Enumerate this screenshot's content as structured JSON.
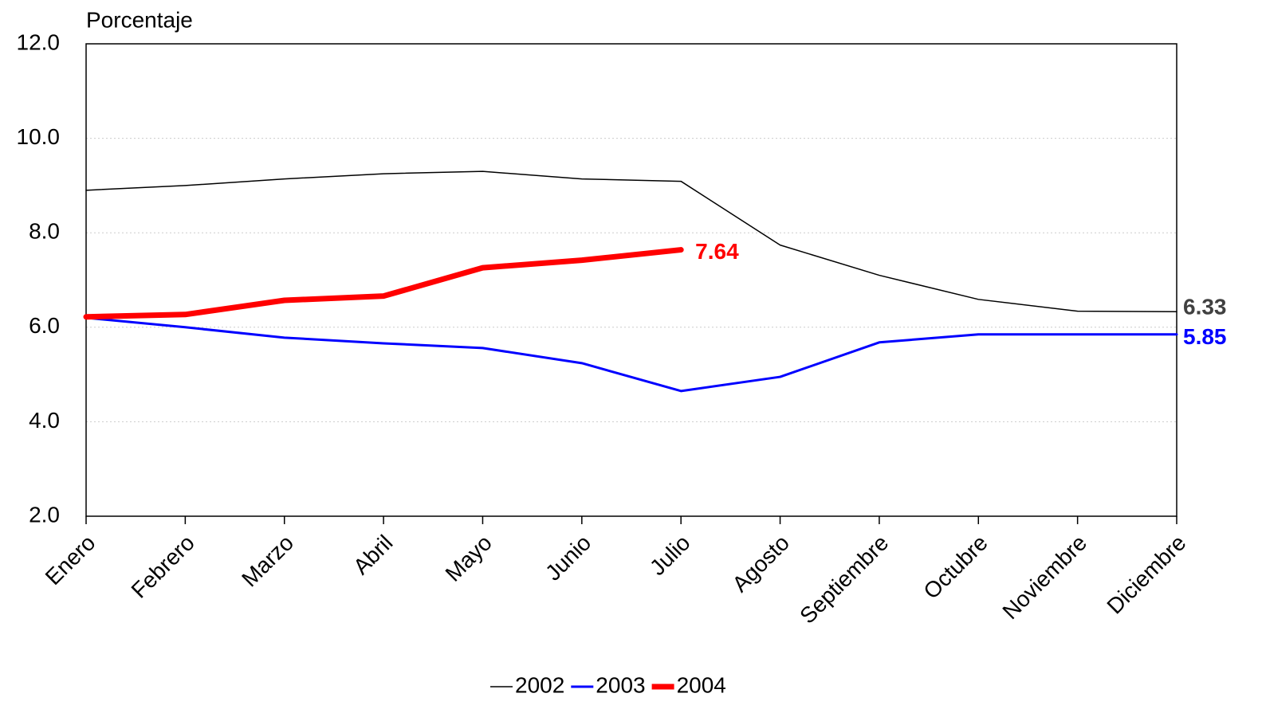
{
  "chart_data": {
    "type": "line",
    "y_axis_label": "Porcentaje",
    "categories": [
      "Enero",
      "Febrero",
      "Marzo",
      "Abril",
      "Mayo",
      "Junio",
      "Julio",
      "Agosto",
      "Septiembre",
      "Octubre",
      "Noviembre",
      "Diciembre"
    ],
    "series": [
      {
        "name": "2002",
        "color": "#000000",
        "line_width": 1.5,
        "values": [
          8.9,
          9.0,
          9.14,
          9.25,
          9.3,
          9.14,
          9.09,
          7.74,
          7.1,
          6.59,
          6.34,
          6.33
        ]
      },
      {
        "name": "2003",
        "color": "#0000ff",
        "line_width": 3,
        "values": [
          6.2,
          6.0,
          5.78,
          5.66,
          5.56,
          5.24,
          4.65,
          4.95,
          5.68,
          5.85,
          5.85,
          5.85
        ]
      },
      {
        "name": "2004",
        "color": "#ff0000",
        "line_width": 7,
        "values": [
          6.22,
          6.27,
          6.57,
          6.66,
          7.26,
          7.42,
          7.64,
          null,
          null,
          null,
          null,
          null
        ]
      }
    ],
    "ylim": [
      2,
      12
    ],
    "yticks": [
      {
        "value": 2,
        "label": "2.0"
      },
      {
        "value": 4,
        "label": "4.0"
      },
      {
        "value": 6,
        "label": "6.0"
      },
      {
        "value": 8,
        "label": "8.0"
      },
      {
        "value": 10,
        "label": "10.0"
      },
      {
        "value": 12,
        "label": "12.0"
      }
    ],
    "grid": true,
    "legend": "bottom"
  }
}
